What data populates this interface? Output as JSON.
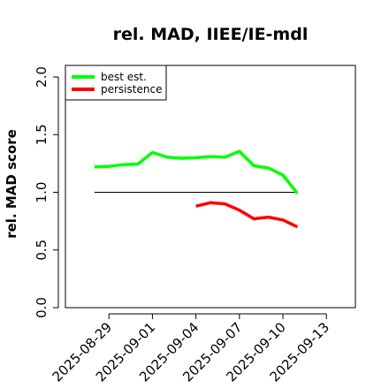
{
  "chart_data": {
    "type": "line",
    "title": "rel. MAD, IIEE/IE-mdl",
    "xlabel": "",
    "ylabel": "rel. MAD score",
    "x_type": "date",
    "xlim": [
      "2025-08-26",
      "2025-09-15"
    ],
    "ylim": [
      0.0,
      2.1
    ],
    "x_ticks": [
      "2025-08-29",
      "2025-09-01",
      "2025-09-04",
      "2025-09-07",
      "2025-09-10",
      "2025-09-13"
    ],
    "y_ticks": [
      0.0,
      0.5,
      1.0,
      1.5,
      2.0
    ],
    "y_tick_labels": [
      "0.0",
      "0.5",
      "1.0",
      "1.5",
      "2.0"
    ],
    "reference_line": {
      "y": 1.0,
      "x_from": "2025-08-28",
      "x_to": "2025-09-11",
      "color": "#000000"
    },
    "legend": {
      "position": "top-left",
      "entries": [
        "best est.",
        "persistence"
      ]
    },
    "series": [
      {
        "name": "best est.",
        "color": "#00ff00",
        "points": [
          [
            "2025-08-28",
            1.22
          ],
          [
            "2025-08-29",
            1.225
          ],
          [
            "2025-08-30",
            1.24
          ],
          [
            "2025-08-31",
            1.245
          ],
          [
            "2025-09-01",
            1.345
          ],
          [
            "2025-09-02",
            1.305
          ],
          [
            "2025-09-03",
            1.295
          ],
          [
            "2025-09-04",
            1.3
          ],
          [
            "2025-09-05",
            1.31
          ],
          [
            "2025-09-06",
            1.305
          ],
          [
            "2025-09-07",
            1.355
          ],
          [
            "2025-09-08",
            1.23
          ],
          [
            "2025-09-09",
            1.21
          ],
          [
            "2025-09-10",
            1.15
          ],
          [
            "2025-09-11",
            0.99
          ]
        ]
      },
      {
        "name": "persistence",
        "color": "#ff0000",
        "points": [
          [
            "2025-09-04",
            0.88
          ],
          [
            "2025-09-05",
            0.91
          ],
          [
            "2025-09-06",
            0.9
          ],
          [
            "2025-09-07",
            0.845
          ],
          [
            "2025-09-08",
            0.77
          ],
          [
            "2025-09-09",
            0.785
          ],
          [
            "2025-09-10",
            0.76
          ],
          [
            "2025-09-11",
            0.7
          ]
        ]
      }
    ]
  }
}
